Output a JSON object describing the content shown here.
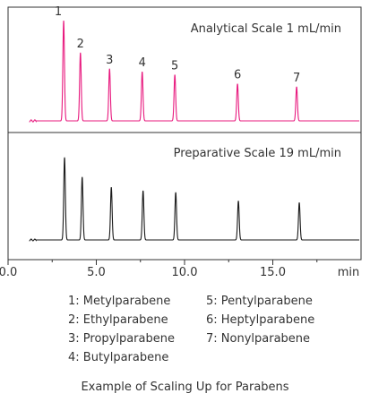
{
  "chart_data": {
    "type": "line",
    "xlabel": "min",
    "xlim": [
      0,
      20
    ],
    "xticks": [
      {
        "value": 0,
        "label": "0.0"
      },
      {
        "value": 5,
        "label": "5.0"
      },
      {
        "value": 10,
        "label": "10.0"
      },
      {
        "value": 15,
        "label": "15.0"
      }
    ],
    "grid": false,
    "legend": "none",
    "series": [
      {
        "name": "Analytical Scale 1 mL/min",
        "color": "#e8197e",
        "peaks": [
          {
            "label": "1",
            "x": 3.15,
            "height": 1.0
          },
          {
            "label": "2",
            "x": 4.1,
            "height": 0.68
          },
          {
            "label": "3",
            "x": 5.75,
            "height": 0.52
          },
          {
            "label": "4",
            "x": 7.6,
            "height": 0.49
          },
          {
            "label": "5",
            "x": 9.45,
            "height": 0.46
          },
          {
            "label": "6",
            "x": 13.0,
            "height": 0.37
          },
          {
            "label": "7",
            "x": 16.35,
            "height": 0.34
          }
        ]
      },
      {
        "name": "Preparative Scale 19 mL/min",
        "color": "#1a1a1a",
        "peaks": [
          {
            "label": "1",
            "x": 3.2,
            "height": 0.97
          },
          {
            "label": "2",
            "x": 4.2,
            "height": 0.74
          },
          {
            "label": "3",
            "x": 5.85,
            "height": 0.62
          },
          {
            "label": "4",
            "x": 7.65,
            "height": 0.58
          },
          {
            "label": "5",
            "x": 9.5,
            "height": 0.56
          },
          {
            "label": "6",
            "x": 13.05,
            "height": 0.46
          },
          {
            "label": "7",
            "x": 16.5,
            "height": 0.44
          }
        ]
      }
    ]
  },
  "legend_left": [
    "1: Metylparabene",
    "2: Ethylparabene",
    "3: Propylparabene",
    "4: Butylparabene"
  ],
  "legend_right": [
    "5: Pentylparabene",
    "6: Heptylparabene",
    "7: Nonylparabene"
  ],
  "caption": "Example of Scaling Up for Parabens"
}
